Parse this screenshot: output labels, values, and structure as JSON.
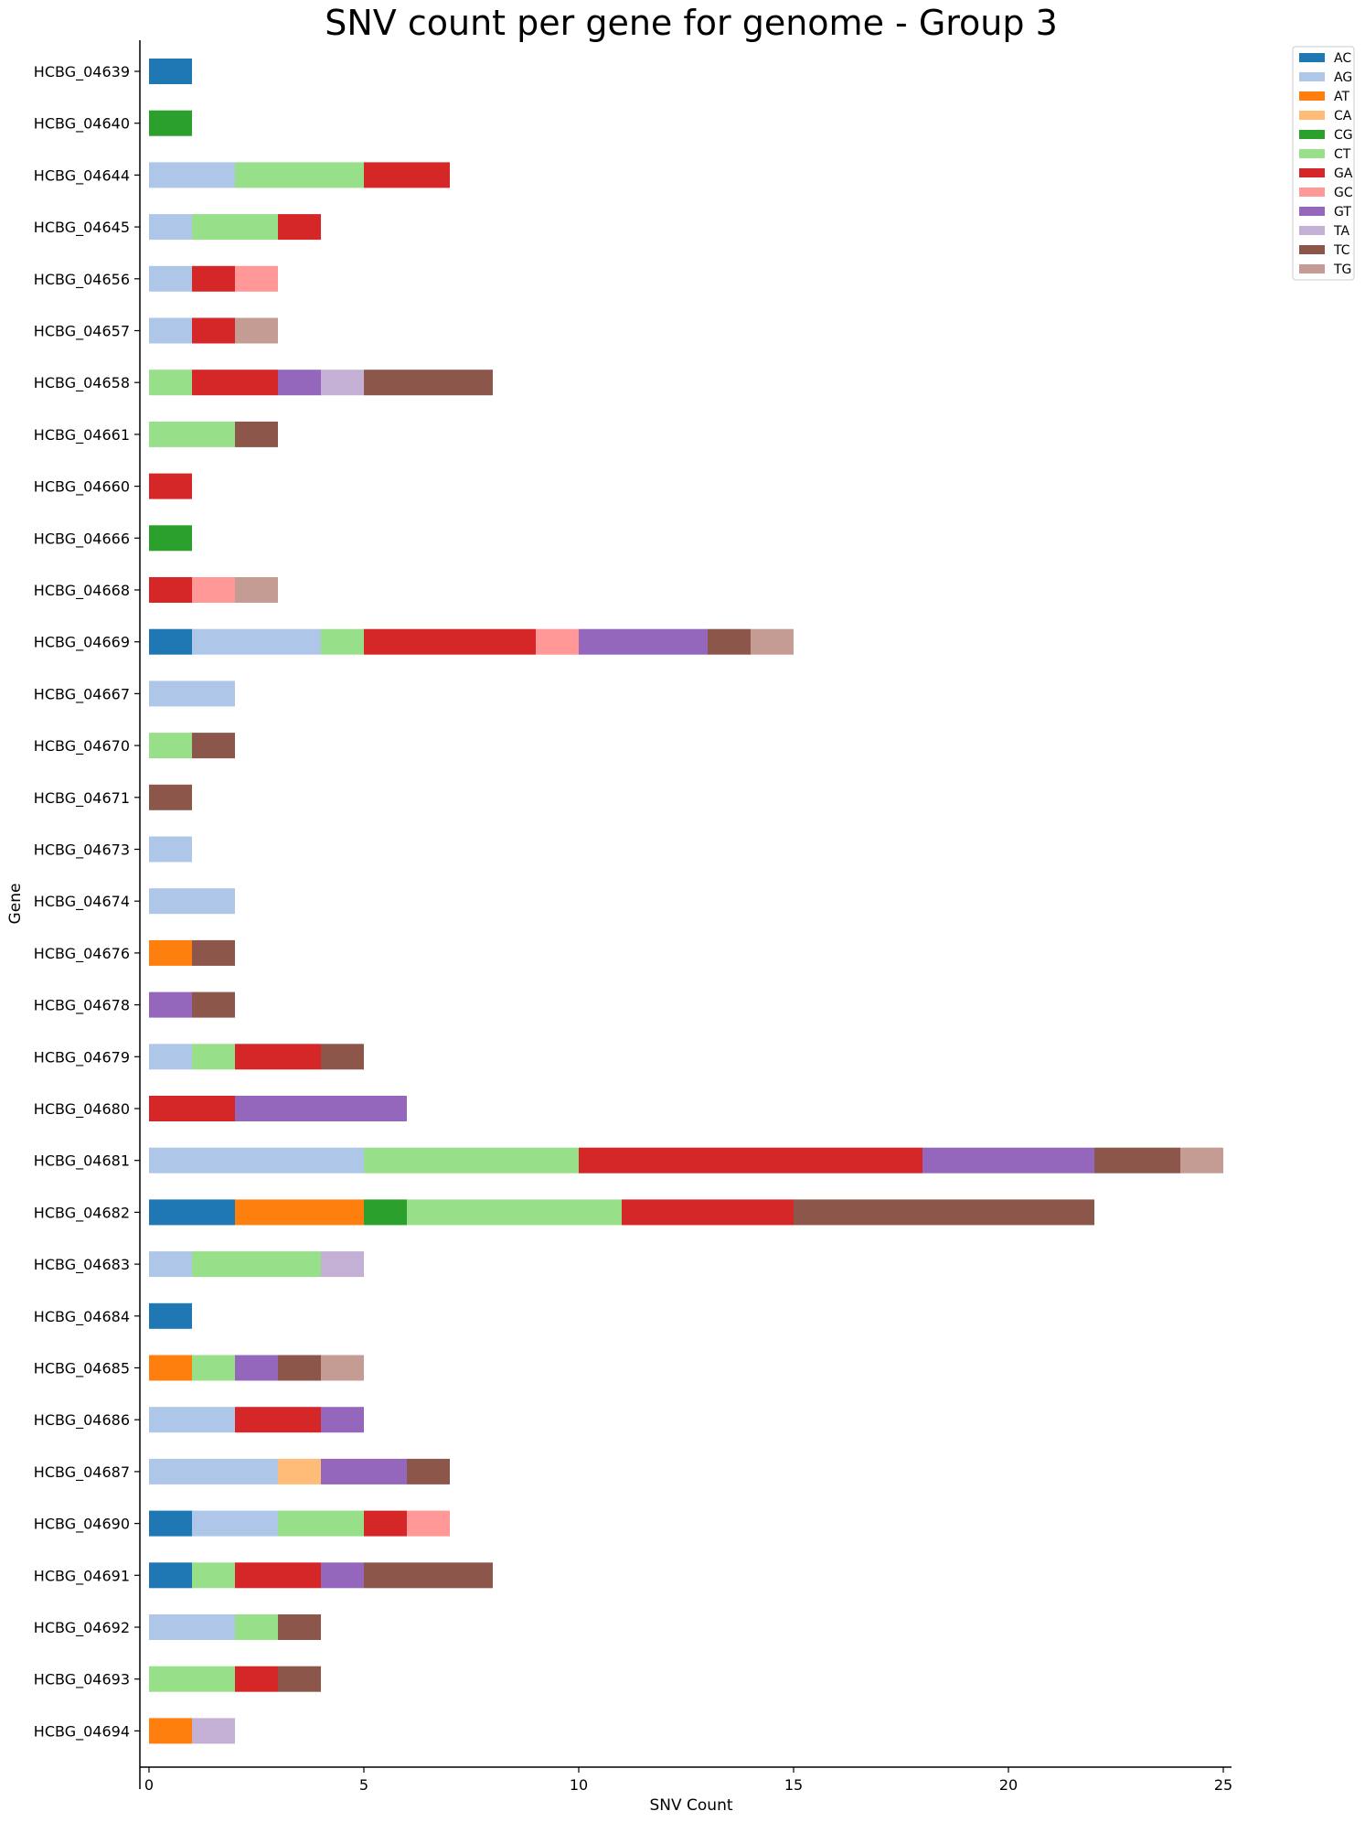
{
  "chart_data": {
    "type": "bar",
    "orientation": "horizontal",
    "stacked": true,
    "title": "SNV count per gene for genome - Group 3",
    "xlabel": "SNV Count",
    "ylabel": "Gene",
    "xlim": [
      0,
      25
    ],
    "xticks": [
      0,
      5,
      10,
      15,
      20,
      25
    ],
    "grid": false,
    "legend_position": "upper-right-outside",
    "categories": [
      "HCBG_04639",
      "HCBG_04640",
      "HCBG_04644",
      "HCBG_04645",
      "HCBG_04656",
      "HCBG_04657",
      "HCBG_04658",
      "HCBG_04661",
      "HCBG_04660",
      "HCBG_04666",
      "HCBG_04668",
      "HCBG_04669",
      "HCBG_04667",
      "HCBG_04670",
      "HCBG_04671",
      "HCBG_04673",
      "HCBG_04674",
      "HCBG_04676",
      "HCBG_04678",
      "HCBG_04679",
      "HCBG_04680",
      "HCBG_04681",
      "HCBG_04682",
      "HCBG_04683",
      "HCBG_04684",
      "HCBG_04685",
      "HCBG_04686",
      "HCBG_04687",
      "HCBG_04690",
      "HCBG_04691",
      "HCBG_04692",
      "HCBG_04693",
      "HCBG_04694"
    ],
    "series": [
      {
        "name": "AC",
        "color": "#1f77b4",
        "values": [
          1,
          0,
          0,
          0,
          0,
          0,
          0,
          0,
          0,
          0,
          0,
          1,
          0,
          0,
          0,
          0,
          0,
          0,
          0,
          0,
          0,
          0,
          2,
          0,
          1,
          0,
          0,
          0,
          1,
          1,
          0,
          0,
          0
        ]
      },
      {
        "name": "AG",
        "color": "#aec7e8",
        "values": [
          0,
          0,
          2,
          1,
          1,
          1,
          0,
          0,
          0,
          0,
          0,
          3,
          2,
          0,
          0,
          1,
          2,
          0,
          0,
          1,
          0,
          5,
          0,
          1,
          0,
          0,
          2,
          3,
          2,
          0,
          2,
          0,
          0
        ]
      },
      {
        "name": "AT",
        "color": "#ff7f0e",
        "values": [
          0,
          0,
          0,
          0,
          0,
          0,
          0,
          0,
          0,
          0,
          0,
          0,
          0,
          0,
          0,
          0,
          0,
          1,
          0,
          0,
          0,
          0,
          3,
          0,
          0,
          1,
          0,
          0,
          0,
          0,
          0,
          0,
          1
        ]
      },
      {
        "name": "CA",
        "color": "#ffbb78",
        "values": [
          0,
          0,
          0,
          0,
          0,
          0,
          0,
          0,
          0,
          0,
          0,
          0,
          0,
          0,
          0,
          0,
          0,
          0,
          0,
          0,
          0,
          0,
          0,
          0,
          0,
          0,
          0,
          1,
          0,
          0,
          0,
          0,
          0
        ]
      },
      {
        "name": "CG",
        "color": "#2ca02c",
        "values": [
          0,
          1,
          0,
          0,
          0,
          0,
          0,
          0,
          0,
          1,
          0,
          0,
          0,
          0,
          0,
          0,
          0,
          0,
          0,
          0,
          0,
          0,
          1,
          0,
          0,
          0,
          0,
          0,
          0,
          0,
          0,
          0,
          0
        ]
      },
      {
        "name": "CT",
        "color": "#98df8a",
        "values": [
          0,
          0,
          3,
          2,
          0,
          0,
          1,
          2,
          0,
          0,
          0,
          1,
          0,
          1,
          0,
          0,
          0,
          0,
          0,
          1,
          0,
          5,
          5,
          3,
          0,
          1,
          0,
          0,
          2,
          1,
          1,
          2,
          0
        ]
      },
      {
        "name": "GA",
        "color": "#d62728",
        "values": [
          0,
          0,
          2,
          1,
          1,
          1,
          2,
          0,
          1,
          0,
          1,
          4,
          0,
          0,
          0,
          0,
          0,
          0,
          0,
          2,
          2,
          8,
          4,
          0,
          0,
          0,
          2,
          0,
          1,
          2,
          0,
          1,
          0
        ]
      },
      {
        "name": "GC",
        "color": "#ff9896",
        "values": [
          0,
          0,
          0,
          0,
          1,
          0,
          0,
          0,
          0,
          0,
          1,
          1,
          0,
          0,
          0,
          0,
          0,
          0,
          0,
          0,
          0,
          0,
          0,
          0,
          0,
          0,
          0,
          0,
          1,
          0,
          0,
          0,
          0
        ]
      },
      {
        "name": "GT",
        "color": "#9467bd",
        "values": [
          0,
          0,
          0,
          0,
          0,
          0,
          1,
          0,
          0,
          0,
          0,
          3,
          0,
          0,
          0,
          0,
          0,
          0,
          1,
          0,
          4,
          4,
          0,
          0,
          0,
          1,
          1,
          2,
          0,
          1,
          0,
          0,
          0
        ]
      },
      {
        "name": "TA",
        "color": "#c5b0d5",
        "values": [
          0,
          0,
          0,
          0,
          0,
          0,
          1,
          0,
          0,
          0,
          0,
          0,
          0,
          0,
          0,
          0,
          0,
          0,
          0,
          0,
          0,
          0,
          0,
          1,
          0,
          0,
          0,
          0,
          0,
          0,
          0,
          0,
          1
        ]
      },
      {
        "name": "TC",
        "color": "#8c564b",
        "values": [
          0,
          0,
          0,
          0,
          0,
          0,
          3,
          1,
          0,
          0,
          0,
          1,
          0,
          1,
          1,
          0,
          0,
          1,
          1,
          1,
          0,
          2,
          7,
          0,
          0,
          1,
          0,
          1,
          0,
          3,
          1,
          1,
          0
        ]
      },
      {
        "name": "TG",
        "color": "#c49c94",
        "values": [
          0,
          0,
          0,
          0,
          0,
          1,
          0,
          0,
          0,
          0,
          1,
          1,
          0,
          0,
          0,
          0,
          0,
          0,
          0,
          0,
          0,
          1,
          0,
          0,
          0,
          1,
          0,
          0,
          0,
          0,
          0,
          0,
          0
        ]
      }
    ]
  }
}
